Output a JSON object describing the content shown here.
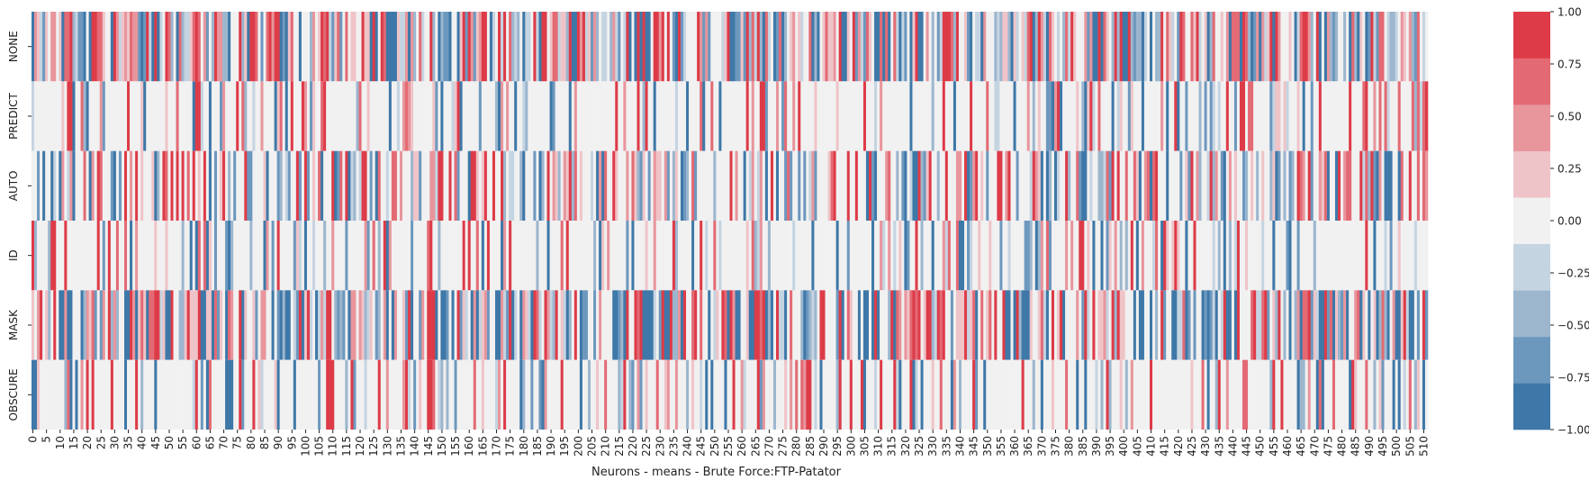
{
  "chart_data": {
    "type": "heatmap",
    "title": "",
    "xlabel": "Neurons - means - Brute Force:FTP-Patator",
    "ylabel": "",
    "rows": [
      "NONE",
      "PREDICT",
      "AUTO",
      "ID",
      "MASK",
      "OBSCURE"
    ],
    "n_columns": 512,
    "x_tick_step": 5,
    "x_ticks": [
      0,
      5,
      10,
      15,
      20,
      25,
      30,
      35,
      40,
      45,
      50,
      55,
      60,
      65,
      70,
      75,
      80,
      85,
      90,
      95,
      100,
      105,
      110,
      115,
      120,
      125,
      130,
      135,
      140,
      145,
      150,
      155,
      160,
      165,
      170,
      175,
      180,
      185,
      190,
      195,
      200,
      205,
      210,
      215,
      220,
      225,
      230,
      235,
      240,
      245,
      250,
      255,
      260,
      265,
      270,
      275,
      280,
      285,
      290,
      295,
      300,
      305,
      310,
      315,
      320,
      325,
      330,
      335,
      340,
      345,
      350,
      355,
      360,
      365,
      370,
      375,
      380,
      385,
      390,
      395,
      400,
      405,
      410,
      415,
      420,
      425,
      430,
      435,
      440,
      445,
      450,
      455,
      460,
      465,
      470,
      475,
      480,
      485,
      490,
      495,
      500,
      505,
      510
    ],
    "value_range": [
      -1.0,
      1.0
    ],
    "colorbar": {
      "ticks": [
        "1.00",
        "0.75",
        "0.50",
        "0.25",
        "0.00",
        "−0.25",
        "−0.50",
        "−0.75",
        "−1.00"
      ],
      "levels": [
        -1.0,
        -0.75,
        -0.5,
        -0.25,
        0.0,
        0.25,
        0.5,
        0.75,
        1.0
      ],
      "colors": [
        "#3e78a8",
        "#6d98be",
        "#9cb6ce",
        "#c5d4e1",
        "#f1f1f1",
        "#efc4c8",
        "#e8959c",
        "#e36a74",
        "#dd3b48"
      ]
    },
    "row_density": {
      "NONE": 0.8,
      "PREDICT": 0.3,
      "AUTO": 0.55,
      "ID": 0.3,
      "MASK": 0.75,
      "OBSCURE": 0.35
    }
  }
}
